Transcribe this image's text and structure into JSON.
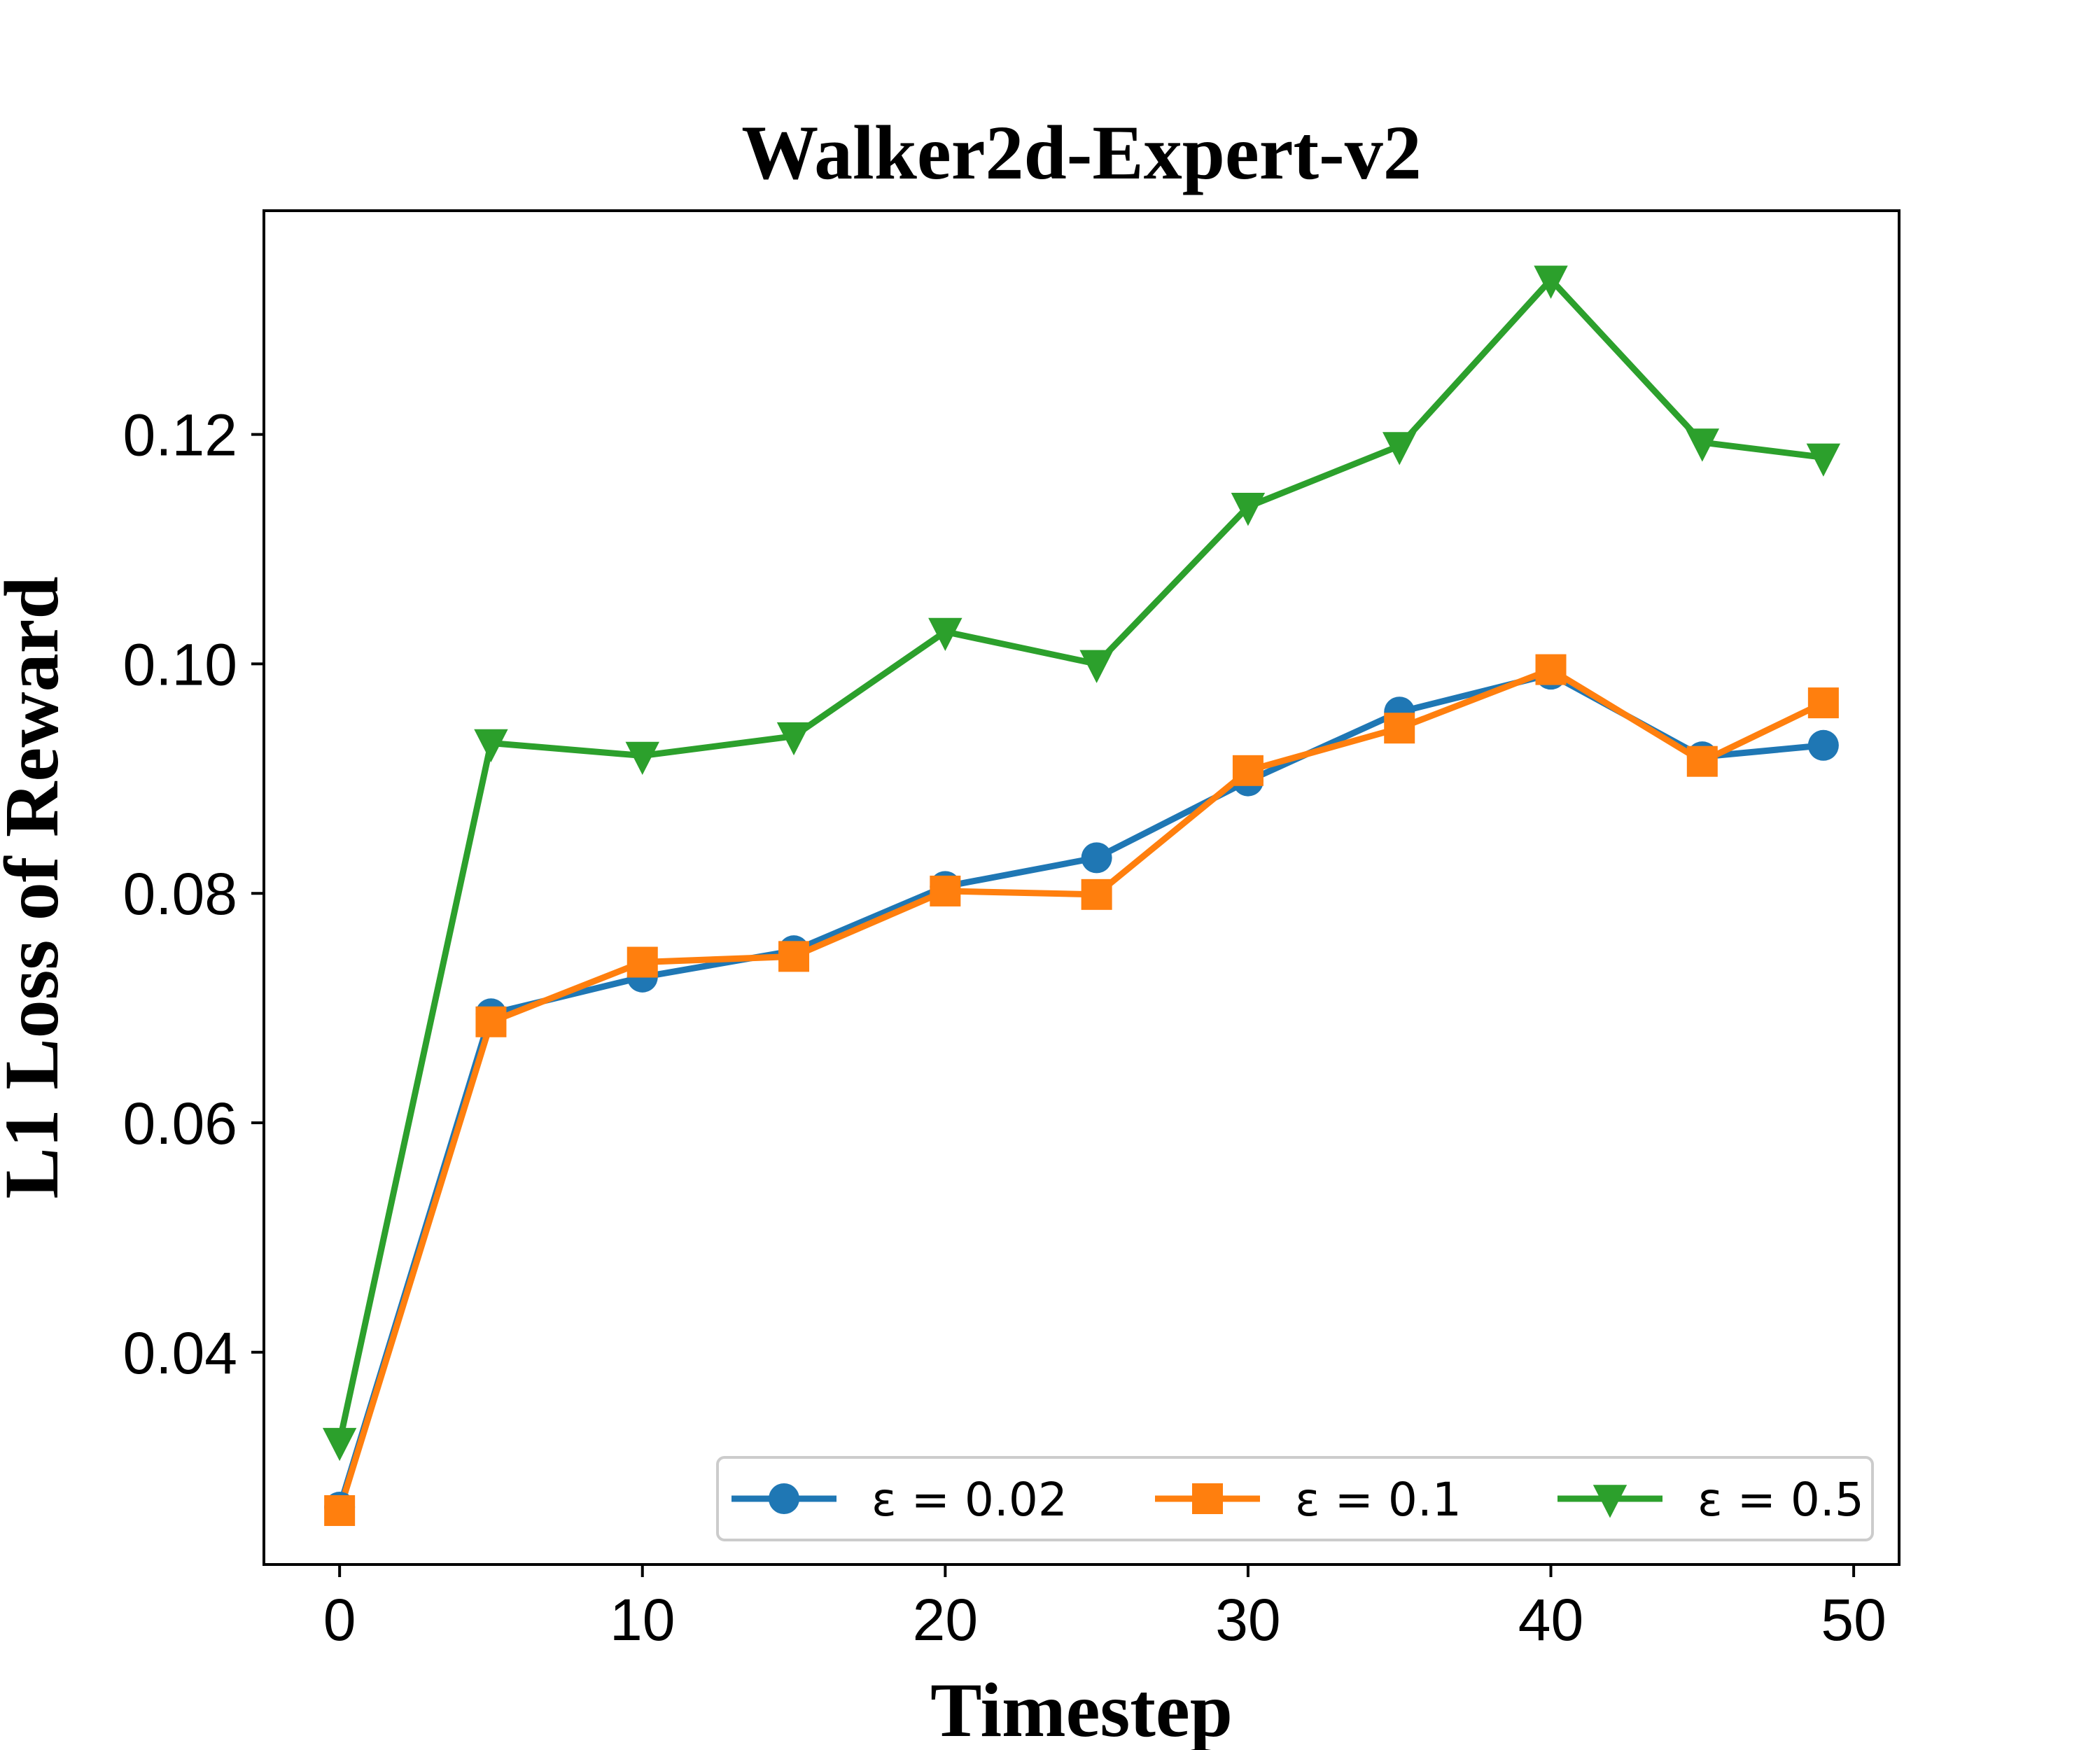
{
  "chart_data": {
    "type": "line",
    "title": "Walker2d-Expert-v2",
    "xlabel": "Timestep",
    "ylabel": "L1 Loss of Reward",
    "xlim": [
      -2.5,
      51.5
    ],
    "ylim": [
      0.0215,
      0.1395
    ],
    "xticks": [
      0,
      10,
      20,
      30,
      40,
      50
    ],
    "xtick_labels": [
      "0",
      "10",
      "20",
      "30",
      "40",
      "50"
    ],
    "yticks": [
      0.04,
      0.06,
      0.08,
      0.1,
      0.12
    ],
    "ytick_labels": [
      "0.04",
      "0.06",
      "0.08",
      "0.10",
      "0.12"
    ],
    "grid": false,
    "legend_position": "bottom-right",
    "x": [
      0,
      5,
      10,
      15,
      20,
      25,
      30,
      35,
      40,
      45,
      49
    ],
    "series": [
      {
        "name": "ε = 0.02",
        "color": "#1f77b4",
        "marker": "circle",
        "values": [
          0.0265,
          0.0695,
          0.0727,
          0.075,
          0.0806,
          0.0831,
          0.0898,
          0.0958,
          0.0991,
          0.0919,
          0.0929
        ]
      },
      {
        "name": "ε = 0.1",
        "color": "#ff7f0e",
        "marker": "square",
        "values": [
          0.0262,
          0.0688,
          0.074,
          0.0745,
          0.0802,
          0.0799,
          0.0907,
          0.0944,
          0.0995,
          0.0915,
          0.0966
        ]
      },
      {
        "name": "ε = 0.5",
        "color": "#2ca02c",
        "marker": "triangle-down",
        "values": [
          0.0322,
          0.0931,
          0.092,
          0.0937,
          0.1028,
          0.1,
          0.1137,
          0.119,
          0.1335,
          0.1193,
          0.118
        ]
      }
    ]
  }
}
